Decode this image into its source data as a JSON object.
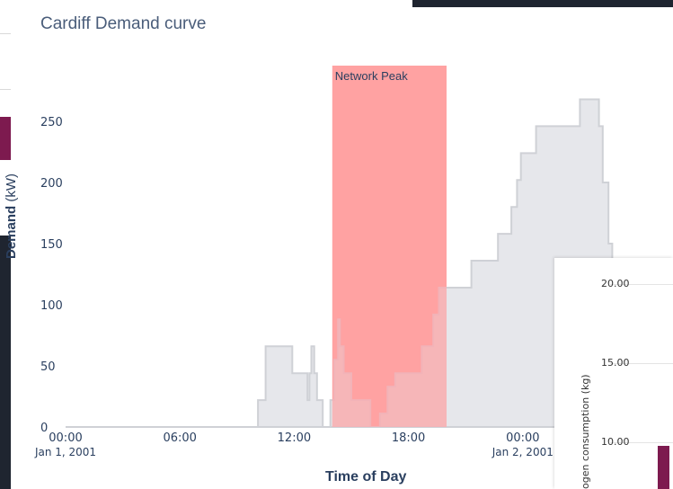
{
  "chart_data": {
    "type": "area",
    "title": "Cardiff Demand curve",
    "xlabel": "Time of Day",
    "ylabel_bold": "Demand",
    "ylabel_unit": "(kW)",
    "ylim": [
      0,
      270
    ],
    "xlim_hours": [
      0,
      27
    ],
    "yticks": [
      0,
      50,
      100,
      150,
      200,
      250
    ],
    "xticks": [
      {
        "h": 0,
        "label": "00:00",
        "sub": "Jan 1, 2001"
      },
      {
        "h": 6,
        "label": "06:00",
        "sub": ""
      },
      {
        "h": 12,
        "label": "12:00",
        "sub": ""
      },
      {
        "h": 18,
        "label": "18:00",
        "sub": ""
      },
      {
        "h": 24,
        "label": "00:00",
        "sub": "Jan 2, 2001"
      }
    ],
    "series": [
      {
        "points": [
          [
            0,
            0
          ],
          [
            10.1,
            0
          ],
          [
            10.1,
            22
          ],
          [
            10.5,
            22
          ],
          [
            10.5,
            66
          ],
          [
            11.9,
            66
          ],
          [
            11.9,
            44
          ],
          [
            12.7,
            44
          ],
          [
            12.7,
            22
          ],
          [
            12.8,
            22
          ],
          [
            12.8,
            44
          ],
          [
            12.9,
            44
          ],
          [
            12.9,
            66
          ],
          [
            13.05,
            66
          ],
          [
            13.05,
            44
          ],
          [
            13.2,
            44
          ],
          [
            13.2,
            22
          ],
          [
            13.5,
            22
          ],
          [
            13.5,
            0
          ],
          [
            13.9,
            0
          ],
          [
            13.9,
            22
          ],
          [
            14.1,
            22
          ],
          [
            14.1,
            55
          ],
          [
            14.3,
            55
          ],
          [
            14.3,
            88
          ],
          [
            14.4,
            88
          ],
          [
            14.4,
            66
          ],
          [
            14.6,
            66
          ],
          [
            14.6,
            44
          ],
          [
            15.0,
            44
          ],
          [
            15.0,
            22
          ],
          [
            16.0,
            22
          ],
          [
            16.0,
            0
          ],
          [
            16.5,
            0
          ],
          [
            16.5,
            11
          ],
          [
            16.9,
            11
          ],
          [
            16.9,
            33
          ],
          [
            17.3,
            33
          ],
          [
            17.3,
            44
          ],
          [
            18.7,
            44
          ],
          [
            18.7,
            66
          ],
          [
            19.3,
            66
          ],
          [
            19.3,
            92
          ],
          [
            19.6,
            92
          ],
          [
            19.6,
            114
          ],
          [
            21.3,
            114
          ],
          [
            21.3,
            136
          ],
          [
            22.7,
            136
          ],
          [
            22.7,
            158
          ],
          [
            23.4,
            158
          ],
          [
            23.4,
            180
          ],
          [
            23.7,
            180
          ],
          [
            23.7,
            202
          ],
          [
            23.9,
            202
          ],
          [
            23.9,
            224
          ],
          [
            24.7,
            224
          ],
          [
            24.7,
            246
          ],
          [
            27,
            246
          ],
          [
            27,
            268
          ],
          [
            28,
            268
          ],
          [
            28,
            246
          ],
          [
            28.2,
            246
          ],
          [
            28.2,
            200
          ],
          [
            28.5,
            200
          ],
          [
            28.5,
            150
          ],
          [
            28.7,
            150
          ]
        ]
      }
    ],
    "annotation": {
      "label": "Network Peak",
      "x0": 14,
      "x1": 20,
      "color": "#ff8080"
    },
    "colors": {
      "area_fill": "#e6e7eb",
      "area_line": "#cfd1d6",
      "band": "#ff9a9a",
      "text": "#2a3f5f",
      "title": "#4a5d7a"
    }
  },
  "inset_chart": {
    "ylabel": "ogen consumption (kg)",
    "yticks": [
      "20.00",
      "15.00",
      "10.00"
    ]
  }
}
